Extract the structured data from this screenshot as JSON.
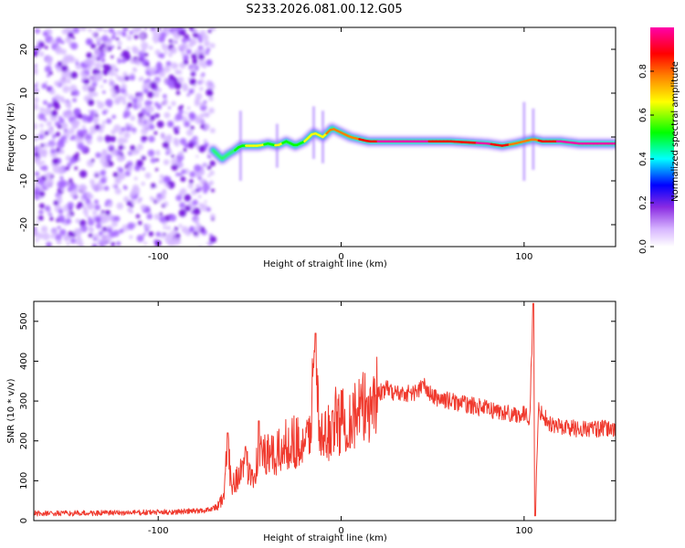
{
  "title": "S233.2026.081.00.12.G05",
  "colors": {
    "snr_line": "#f03a2e",
    "cmap": [
      "#ffffff",
      "#c8a0ff",
      "#8a2be2",
      "#0000ff",
      "#00ffff",
      "#00ff00",
      "#ffff00",
      "#ff7f00",
      "#ff0000",
      "#ff00aa"
    ]
  },
  "chart_data": [
    {
      "type": "heatmap",
      "title": "S233.2026.081.00.12.G05",
      "xlabel": "Height of straight line (km)",
      "ylabel": "Frequency (Hz)",
      "xlim": [
        -168,
        150
      ],
      "ylim": [
        -25,
        25
      ],
      "xticks": [
        -100,
        0,
        100
      ],
      "yticks": [
        -20,
        -10,
        0,
        10,
        20
      ],
      "noise_region": {
        "x": [
          -168,
          -70
        ],
        "description": "random low amplitude speckle"
      },
      "ridge": {
        "x": [
          -70,
          -65,
          -62,
          -58,
          -55,
          -50,
          -45,
          -40,
          -35,
          -30,
          -25,
          -20,
          -15,
          -10,
          -5,
          0,
          5,
          10,
          15,
          20,
          40,
          60,
          80,
          88,
          95,
          100,
          105,
          110,
          120,
          130,
          150
        ],
        "y": [
          -3,
          -5,
          -4,
          -3,
          -2,
          -2,
          -2,
          -1.5,
          -2,
          -1,
          -2,
          -1,
          1,
          0,
          2,
          1,
          0,
          -0.5,
          -1,
          -1,
          -1,
          -1,
          -1.5,
          -2,
          -1.5,
          -1,
          -0.5,
          -1,
          -1,
          -1.5,
          -1.5
        ],
        "amplitude": [
          0.3,
          0.4,
          0.4,
          0.45,
          0.5,
          0.6,
          0.55,
          0.5,
          0.55,
          0.5,
          0.45,
          0.55,
          0.6,
          0.65,
          0.7,
          0.7,
          0.75,
          0.8,
          0.85,
          0.9,
          0.9,
          0.85,
          0.9,
          0.8,
          0.75,
          0.7,
          0.75,
          0.85,
          0.9,
          0.9,
          0.9
        ]
      },
      "colorbar": {
        "label": "Normalized spectral amplitude",
        "range": [
          0,
          1
        ],
        "ticks": [
          "0.0",
          "0.2",
          "0.4",
          "0.6",
          "0.8"
        ]
      }
    },
    {
      "type": "line",
      "title": "",
      "xlabel": "Height of straight line (km)",
      "ylabel": "SNR (10 * v/v)",
      "xlim": [
        -168,
        150
      ],
      "ylim": [
        0,
        550
      ],
      "xticks": [
        -100,
        0,
        100
      ],
      "yticks": [
        0,
        100,
        200,
        300,
        400,
        500
      ],
      "series": [
        {
          "name": "SNR",
          "x": [
            -168,
            -150,
            -130,
            -110,
            -90,
            -75,
            -68,
            -64,
            -62,
            -60,
            -57,
            -52,
            -48,
            -44,
            -40,
            -36,
            -32,
            -28,
            -24,
            -20,
            -17,
            -14,
            -12,
            -8,
            -4,
            0,
            5,
            10,
            15,
            20,
            25,
            30,
            40,
            45,
            50,
            60,
            70,
            80,
            90,
            100,
            103,
            105,
            106,
            108,
            115,
            130,
            150
          ],
          "y": [
            18,
            18,
            19,
            20,
            22,
            25,
            35,
            60,
            200,
            90,
            110,
            140,
            120,
            170,
            160,
            160,
            180,
            200,
            200,
            170,
            240,
            430,
            200,
            210,
            250,
            250,
            260,
            270,
            290,
            320,
            330,
            320,
            320,
            340,
            310,
            300,
            290,
            280,
            270,
            265,
            260,
            540,
            20,
            280,
            240,
            230,
            230
          ]
        }
      ]
    }
  ]
}
